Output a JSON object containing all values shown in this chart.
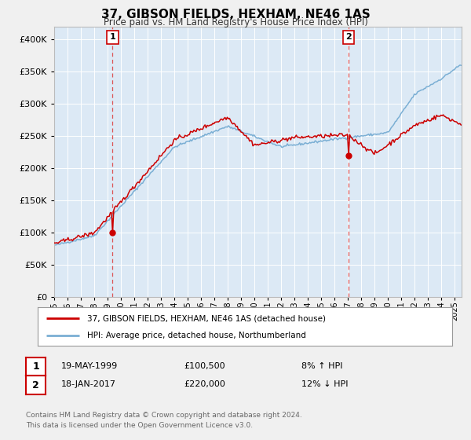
{
  "title": "37, GIBSON FIELDS, HEXHAM, NE46 1AS",
  "subtitle": "Price paid vs. HM Land Registry's House Price Index (HPI)",
  "property_label": "37, GIBSON FIELDS, HEXHAM, NE46 1AS (detached house)",
  "hpi_label": "HPI: Average price, detached house, Northumberland",
  "annotation1_date": "19-MAY-1999",
  "annotation1_price": "£100,500",
  "annotation1_hpi": "8% ↑ HPI",
  "annotation2_date": "18-JAN-2017",
  "annotation2_price": "£220,000",
  "annotation2_hpi": "12% ↓ HPI",
  "footer": "Contains HM Land Registry data © Crown copyright and database right 2024.\nThis data is licensed under the Open Government Licence v3.0.",
  "property_color": "#cc0000",
  "hpi_color": "#7bafd4",
  "background_color": "#f0f0f0",
  "plot_bg_color": "#dce9f5",
  "grid_color": "#ffffff",
  "vline_color": "#dd4444",
  "ylim": [
    0,
    420000
  ],
  "yticks": [
    0,
    50000,
    100000,
    150000,
    200000,
    250000,
    300000,
    350000,
    400000
  ],
  "sale1_t": 1999.37,
  "sale1_price": 100500,
  "sale2_t": 2017.04,
  "sale2_price": 220000
}
